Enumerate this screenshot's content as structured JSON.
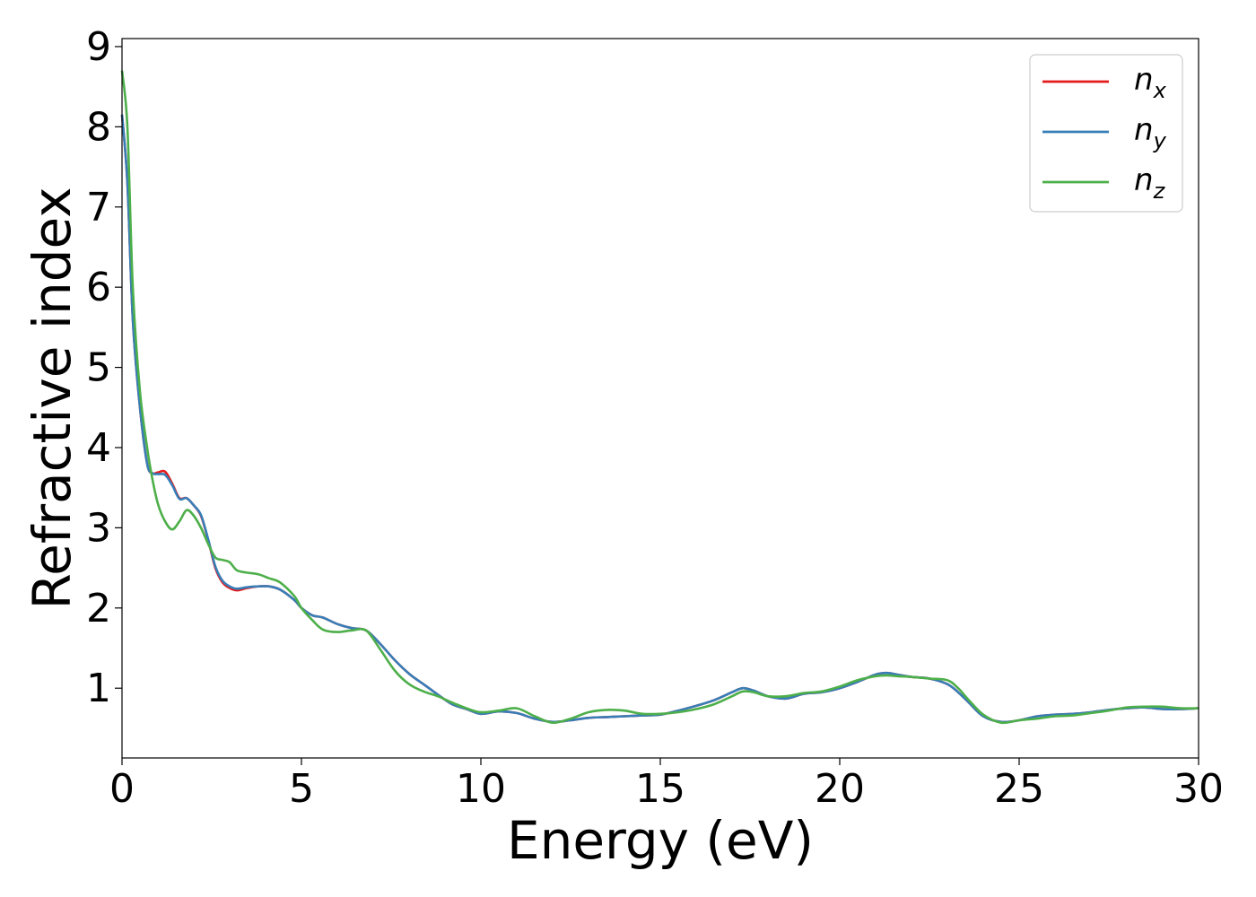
{
  "chart_data": {
    "type": "line",
    "title": "",
    "xlabel": "Energy (eV)",
    "ylabel": "Refractive index",
    "xlim": [
      0,
      30
    ],
    "ylim": [
      0.13,
      9.1
    ],
    "xticks": [
      "0",
      "5",
      "10",
      "15",
      "20",
      "25",
      "30"
    ],
    "yticks": [
      "1",
      "2",
      "3",
      "4",
      "5",
      "6",
      "7",
      "8",
      "9"
    ],
    "grid": false,
    "legend_position": "top-right",
    "series": [
      {
        "name": "n",
        "name_sub": "x",
        "color": "#e41a1c",
        "x": [
          0,
          0.15,
          0.3,
          0.5,
          0.7,
          0.85,
          1.0,
          1.2,
          1.4,
          1.6,
          1.8,
          2.0,
          2.2,
          2.4,
          2.6,
          2.8,
          3.0,
          3.2,
          3.5,
          3.8,
          4.1,
          4.4,
          4.8,
          5.0,
          5.3,
          5.6,
          6.0,
          6.4,
          6.8,
          7.2,
          7.6,
          8.0,
          8.4,
          8.8,
          9.2,
          9.6,
          10.0,
          10.5,
          11.0,
          11.5,
          12.0,
          12.5,
          13.0,
          13.5,
          14.0,
          14.5,
          15.0,
          15.5,
          16.0,
          16.5,
          17.0,
          17.3,
          17.6,
          18.0,
          18.5,
          19.0,
          19.5,
          20.0,
          20.5,
          21.0,
          21.3,
          21.6,
          22.0,
          22.5,
          23.0,
          23.3,
          23.6,
          24.0,
          24.5,
          25.0,
          25.5,
          26.0,
          26.5,
          27.0,
          27.5,
          28.0,
          28.5,
          29.0,
          29.5,
          30.0
        ],
        "y": [
          8.15,
          7.3,
          5.6,
          4.5,
          3.8,
          3.68,
          3.69,
          3.7,
          3.55,
          3.37,
          3.37,
          3.28,
          3.15,
          2.85,
          2.5,
          2.32,
          2.25,
          2.22,
          2.25,
          2.27,
          2.27,
          2.23,
          2.1,
          2.0,
          1.91,
          1.88,
          1.8,
          1.75,
          1.72,
          1.55,
          1.35,
          1.18,
          1.05,
          0.92,
          0.8,
          0.74,
          0.68,
          0.71,
          0.69,
          0.62,
          0.58,
          0.6,
          0.63,
          0.64,
          0.65,
          0.66,
          0.67,
          0.72,
          0.78,
          0.85,
          0.95,
          1.0,
          0.97,
          0.9,
          0.87,
          0.93,
          0.95,
          1.0,
          1.08,
          1.17,
          1.19,
          1.17,
          1.14,
          1.12,
          1.05,
          0.95,
          0.82,
          0.65,
          0.58,
          0.6,
          0.65,
          0.67,
          0.68,
          0.7,
          0.73,
          0.75,
          0.76,
          0.74,
          0.74,
          0.75
        ]
      },
      {
        "name": "n",
        "name_sub": "y",
        "color": "#377eb8",
        "x": [
          0,
          0.15,
          0.3,
          0.5,
          0.7,
          0.85,
          1.0,
          1.2,
          1.4,
          1.6,
          1.8,
          2.0,
          2.2,
          2.4,
          2.6,
          2.8,
          3.0,
          3.2,
          3.5,
          3.8,
          4.1,
          4.4,
          4.8,
          5.0,
          5.3,
          5.6,
          6.0,
          6.4,
          6.8,
          7.2,
          7.6,
          8.0,
          8.4,
          8.8,
          9.2,
          9.6,
          10.0,
          10.5,
          11.0,
          11.5,
          12.0,
          12.5,
          13.0,
          13.5,
          14.0,
          14.5,
          15.0,
          15.5,
          16.0,
          16.5,
          17.0,
          17.3,
          17.6,
          18.0,
          18.5,
          19.0,
          19.5,
          20.0,
          20.5,
          21.0,
          21.3,
          21.6,
          22.0,
          22.5,
          23.0,
          23.3,
          23.6,
          24.0,
          24.5,
          25.0,
          25.5,
          26.0,
          26.5,
          27.0,
          27.5,
          28.0,
          28.5,
          29.0,
          29.5,
          30.0
        ],
        "y": [
          8.15,
          7.3,
          5.6,
          4.5,
          3.8,
          3.68,
          3.67,
          3.66,
          3.53,
          3.36,
          3.37,
          3.28,
          3.16,
          2.86,
          2.52,
          2.34,
          2.27,
          2.24,
          2.26,
          2.27,
          2.27,
          2.23,
          2.1,
          2.0,
          1.91,
          1.88,
          1.8,
          1.75,
          1.72,
          1.55,
          1.35,
          1.18,
          1.05,
          0.92,
          0.8,
          0.74,
          0.68,
          0.71,
          0.69,
          0.62,
          0.58,
          0.6,
          0.63,
          0.64,
          0.65,
          0.66,
          0.67,
          0.72,
          0.78,
          0.85,
          0.95,
          1.0,
          0.97,
          0.9,
          0.87,
          0.93,
          0.95,
          1.0,
          1.08,
          1.17,
          1.19,
          1.17,
          1.14,
          1.12,
          1.05,
          0.95,
          0.82,
          0.65,
          0.58,
          0.6,
          0.65,
          0.67,
          0.68,
          0.7,
          0.73,
          0.75,
          0.76,
          0.74,
          0.74,
          0.75
        ]
      },
      {
        "name": "n",
        "name_sub": "z",
        "color": "#4daf4a",
        "x": [
          0,
          0.15,
          0.3,
          0.5,
          0.7,
          0.85,
          1.0,
          1.2,
          1.4,
          1.6,
          1.8,
          2.0,
          2.2,
          2.4,
          2.6,
          2.8,
          3.0,
          3.2,
          3.5,
          3.8,
          4.1,
          4.4,
          4.8,
          5.0,
          5.3,
          5.6,
          6.0,
          6.4,
          6.8,
          7.2,
          7.6,
          8.0,
          8.4,
          8.8,
          9.2,
          9.6,
          10.0,
          10.5,
          11.0,
          11.5,
          12.0,
          12.5,
          13.0,
          13.5,
          14.0,
          14.5,
          15.0,
          15.5,
          16.0,
          16.5,
          17.0,
          17.3,
          17.6,
          18.0,
          18.5,
          19.0,
          19.5,
          20.0,
          20.5,
          21.0,
          21.3,
          21.6,
          22.0,
          22.5,
          23.0,
          23.3,
          23.6,
          24.0,
          24.5,
          25.0,
          25.5,
          26.0,
          26.5,
          27.0,
          27.5,
          28.0,
          28.5,
          29.0,
          29.5,
          30.0
        ],
        "y": [
          8.7,
          8.0,
          6.0,
          4.7,
          4.0,
          3.6,
          3.3,
          3.08,
          2.98,
          3.08,
          3.22,
          3.15,
          3.0,
          2.8,
          2.63,
          2.6,
          2.57,
          2.47,
          2.44,
          2.42,
          2.37,
          2.32,
          2.15,
          2.0,
          1.85,
          1.73,
          1.7,
          1.72,
          1.72,
          1.48,
          1.22,
          1.05,
          0.96,
          0.9,
          0.82,
          0.75,
          0.7,
          0.72,
          0.75,
          0.65,
          0.57,
          0.62,
          0.7,
          0.73,
          0.72,
          0.68,
          0.68,
          0.7,
          0.74,
          0.8,
          0.9,
          0.96,
          0.95,
          0.9,
          0.9,
          0.94,
          0.96,
          1.02,
          1.1,
          1.15,
          1.16,
          1.15,
          1.14,
          1.12,
          1.1,
          1.0,
          0.85,
          0.67,
          0.57,
          0.6,
          0.62,
          0.65,
          0.66,
          0.69,
          0.72,
          0.76,
          0.77,
          0.77,
          0.75,
          0.75
        ]
      }
    ]
  }
}
